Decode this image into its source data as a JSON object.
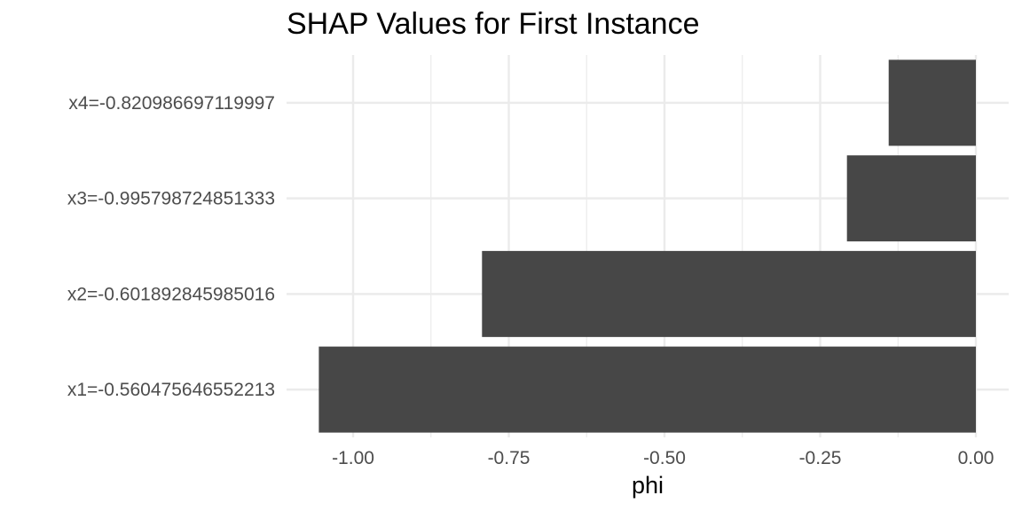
{
  "chart_data": {
    "type": "bar",
    "orientation": "horizontal",
    "title": "SHAP Values for First Instance",
    "xlabel": "phi",
    "ylabel": "",
    "categories": [
      "x1=-0.560475646552213",
      "x2=-0.601892845985016",
      "x3=-0.995798724851333",
      "x4=-0.820986697119997"
    ],
    "values": [
      -1.055,
      -0.793,
      -0.207,
      -0.14
    ],
    "xlim": [
      -1.08,
      0.03
    ],
    "xticks": [
      -1.0,
      -0.75,
      -0.5,
      -0.25,
      0.0
    ],
    "xtick_labels": [
      "-1.00",
      "-0.75",
      "-0.50",
      "-0.25",
      "0.00"
    ],
    "grid": true,
    "legend": "none",
    "bar_color": "#474747",
    "grid_color": "#ebebeb",
    "text_color": "#4d4d4d"
  }
}
